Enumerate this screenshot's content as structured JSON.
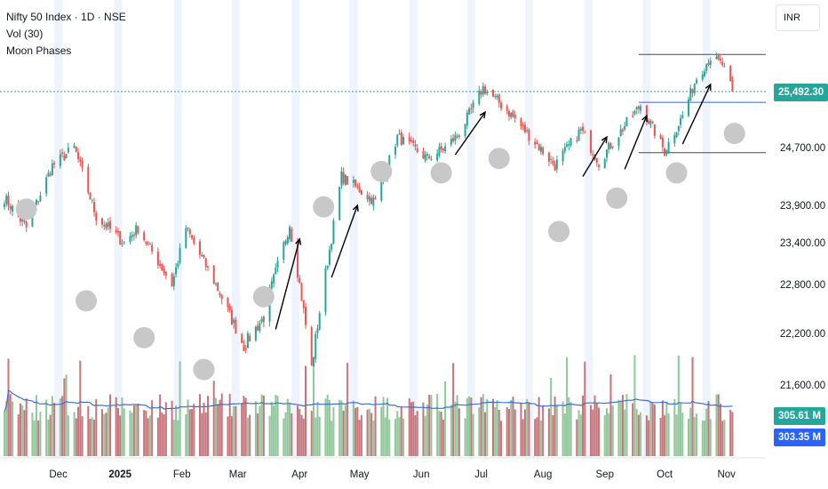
{
  "legend": {
    "symbol": "Nifty 50 Index · 1D · NSE",
    "volume": "Vol (30)",
    "indicator": "Moon Phases"
  },
  "currency_button": "INR",
  "last_price_label": "25,492.30",
  "volume_labels": {
    "volume": "305.61 M",
    "volume_ma": "303.35 M"
  },
  "colors": {
    "up": "#26a69a",
    "down": "#ef5350",
    "vol_up": "#8fc79a",
    "vol_down": "#c7747a",
    "vol_ma": "#3c6fd8",
    "price_line": "#26a69a",
    "moon": "#c8c8c8",
    "band": "#eef3fd",
    "annotation": "#000000",
    "level_line": "#4a4a4a",
    "level_blue": "#2962ff",
    "tag_price": "#26a69a",
    "tag_vol_up": "#26a69a",
    "tag_vol_ma": "#2962ff"
  },
  "chart_data": {
    "type": "candlestick",
    "y_axis_ticks": [
      21600,
      22200,
      22800,
      23400,
      23900,
      24700,
      25492.3
    ],
    "y_tick_labels": [
      "21,600.00",
      "22,200.00",
      "22,800.00",
      "23,400.00",
      "23,900.00",
      "24,700.00",
      "25,492.30"
    ],
    "x_labels": [
      "Dec",
      "2025",
      "Feb",
      "Mar",
      "Apr",
      "May",
      "Jun",
      "Jul",
      "Aug",
      "Sep",
      "Oct",
      "Nov"
    ],
    "x_label_dates": [
      "2024-12-01",
      "2025-01-01",
      "2025-02-01",
      "2025-03-01",
      "2025-04-01",
      "2025-05-01",
      "2025-06-01",
      "2025-07-01",
      "2025-08-01",
      "2025-09-01",
      "2025-10-01",
      "2025-11-01"
    ],
    "date_range": [
      "2024-11-04",
      "2025-11-04"
    ],
    "close_path": [
      [
        "2024-11-04",
        24000
      ],
      [
        "2024-11-15",
        23600
      ],
      [
        "2024-11-28",
        24450
      ],
      [
        "2024-12-09",
        24700
      ],
      [
        "2024-12-20",
        23750
      ],
      [
        "2025-01-03",
        23400
      ],
      [
        "2025-01-10",
        23600
      ],
      [
        "2025-01-27",
        22800
      ],
      [
        "2025-02-03",
        23600
      ],
      [
        "2025-02-18",
        22800
      ],
      [
        "2025-03-04",
        22050
      ],
      [
        "2025-03-14",
        22400
      ],
      [
        "2025-03-27",
        23650
      ],
      [
        "2025-04-07",
        21800
      ],
      [
        "2025-04-22",
        24300
      ],
      [
        "2025-05-09",
        23950
      ],
      [
        "2025-05-20",
        24850
      ],
      [
        "2025-06-04",
        24550
      ],
      [
        "2025-06-13",
        24700
      ],
      [
        "2025-06-20",
        24900
      ],
      [
        "2025-07-02",
        25550
      ],
      [
        "2025-07-15",
        25200
      ],
      [
        "2025-08-07",
        24450
      ],
      [
        "2025-08-20",
        24950
      ],
      [
        "2025-08-29",
        24500
      ],
      [
        "2025-09-12",
        25050
      ],
      [
        "2025-09-19",
        25300
      ],
      [
        "2025-10-01",
        24650
      ],
      [
        "2025-10-10",
        25150
      ],
      [
        "2025-10-17",
        25700
      ],
      [
        "2025-10-24",
        26000
      ],
      [
        "2025-10-30",
        25900
      ],
      [
        "2025-11-04",
        25492
      ]
    ],
    "volume_ma_label": "303.35 M",
    "volume_last_label": "305.61 M",
    "horizontal_levels": [
      {
        "value": 26050,
        "from": "2025-09-18",
        "to": "2025-11-25"
      },
      {
        "value": 25340,
        "from": "2025-09-18",
        "to": "2025-11-25"
      },
      {
        "value": 24630,
        "from": "2025-09-18",
        "to": "2025-11-25"
      }
    ],
    "full_moons": [
      {
        "date": "2024-11-15",
        "price": 23850
      },
      {
        "date": "2024-12-15",
        "price": 22600
      },
      {
        "date": "2025-01-13",
        "price": 22150
      },
      {
        "date": "2025-02-12",
        "price": 21780
      },
      {
        "date": "2025-03-14",
        "price": 22650
      },
      {
        "date": "2025-04-13",
        "price": 23880
      },
      {
        "date": "2025-05-12",
        "price": 24370
      },
      {
        "date": "2025-06-11",
        "price": 24350
      },
      {
        "date": "2025-07-10",
        "price": 24550
      },
      {
        "date": "2025-08-09",
        "price": 23550
      },
      {
        "date": "2025-09-07",
        "price": 24000
      },
      {
        "date": "2025-10-07",
        "price": 24350
      },
      {
        "date": "2025-11-05",
        "price": 24900
      }
    ],
    "new_moon_bands": [
      [
        "2024-11-29",
        "2024-12-03"
      ],
      [
        "2024-12-29",
        "2025-01-02"
      ],
      [
        "2025-01-28",
        "2025-02-01"
      ],
      [
        "2025-02-26",
        "2025-03-02"
      ],
      [
        "2025-03-28",
        "2025-04-01"
      ],
      [
        "2025-04-26",
        "2025-04-30"
      ],
      [
        "2025-05-26",
        "2025-05-30"
      ],
      [
        "2025-06-24",
        "2025-06-28"
      ],
      [
        "2025-07-23",
        "2025-07-27"
      ],
      [
        "2025-08-22",
        "2025-08-26"
      ],
      [
        "2025-09-20",
        "2025-09-24"
      ],
      [
        "2025-10-20",
        "2025-10-24"
      ]
    ],
    "arrows": [
      {
        "from": [
          "2025-03-20",
          22250
        ],
        "to": [
          "2025-04-01",
          23450
        ]
      },
      {
        "from": [
          "2025-04-17",
          22900
        ],
        "to": [
          "2025-04-30",
          23900
        ]
      },
      {
        "from": [
          "2025-06-18",
          24600
        ],
        "to": [
          "2025-07-03",
          25200
        ]
      },
      {
        "from": [
          "2025-08-21",
          24300
        ],
        "to": [
          "2025-09-02",
          24850
        ]
      },
      {
        "from": [
          "2025-09-11",
          24400
        ],
        "to": [
          "2025-09-22",
          25150
        ]
      },
      {
        "from": [
          "2025-10-10",
          24750
        ],
        "to": [
          "2025-10-24",
          25600
        ]
      }
    ]
  }
}
